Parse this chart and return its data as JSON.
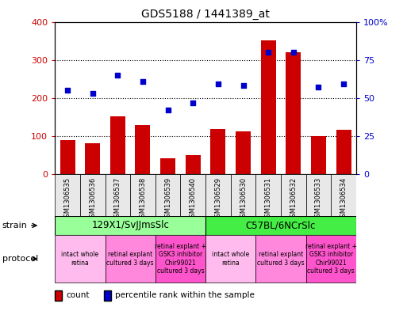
{
  "title": "GDS5188 / 1441389_at",
  "samples": [
    "GSM1306535",
    "GSM1306536",
    "GSM1306537",
    "GSM1306538",
    "GSM1306539",
    "GSM1306540",
    "GSM1306529",
    "GSM1306530",
    "GSM1306531",
    "GSM1306532",
    "GSM1306533",
    "GSM1306534"
  ],
  "counts": [
    90,
    82,
    152,
    128,
    42,
    50,
    118,
    113,
    352,
    320,
    100,
    117
  ],
  "percentiles_pct": [
    55,
    53,
    65,
    61,
    42,
    47,
    59,
    58,
    80,
    80,
    57,
    59
  ],
  "ylim_left": [
    0,
    400
  ],
  "yticks_left": [
    0,
    100,
    200,
    300,
    400
  ],
  "yticks_right": [
    0,
    25,
    50,
    75,
    100
  ],
  "yticklabels_right": [
    "0",
    "25",
    "50",
    "75",
    "100%"
  ],
  "bar_color": "#cc0000",
  "dot_color": "#0000cc",
  "strain_groups": [
    {
      "label": "129X1/SvJJmsSlc",
      "start": 0,
      "end": 6,
      "color": "#99ff99"
    },
    {
      "label": "C57BL/6NCrSlc",
      "start": 6,
      "end": 12,
      "color": "#44ee44"
    }
  ],
  "protocol_groups": [
    {
      "label": "intact whole\nretina",
      "start": 0,
      "end": 2,
      "color": "#ffbbee"
    },
    {
      "label": "retinal explant\ncultured 3 days",
      "start": 2,
      "end": 4,
      "color": "#ff88dd"
    },
    {
      "label": "retinal explant +\nGSK3 inhibitor\nChir99021\ncultured 3 days",
      "start": 4,
      "end": 6,
      "color": "#ff55cc"
    },
    {
      "label": "intact whole\nretina",
      "start": 6,
      "end": 8,
      "color": "#ffbbee"
    },
    {
      "label": "retinal explant\ncultured 3 days",
      "start": 8,
      "end": 10,
      "color": "#ff88dd"
    },
    {
      "label": "retinal explant +\nGSK3 inhibitor\nChir99021\ncultured 3 days",
      "start": 10,
      "end": 12,
      "color": "#ff55cc"
    }
  ],
  "strain_label": "strain",
  "protocol_label": "protocol",
  "legend_count_label": "count",
  "legend_pct_label": "percentile rank within the sample",
  "figsize": [
    5.13,
    3.93
  ],
  "dpi": 100,
  "bg_color": "#e8e8e8"
}
